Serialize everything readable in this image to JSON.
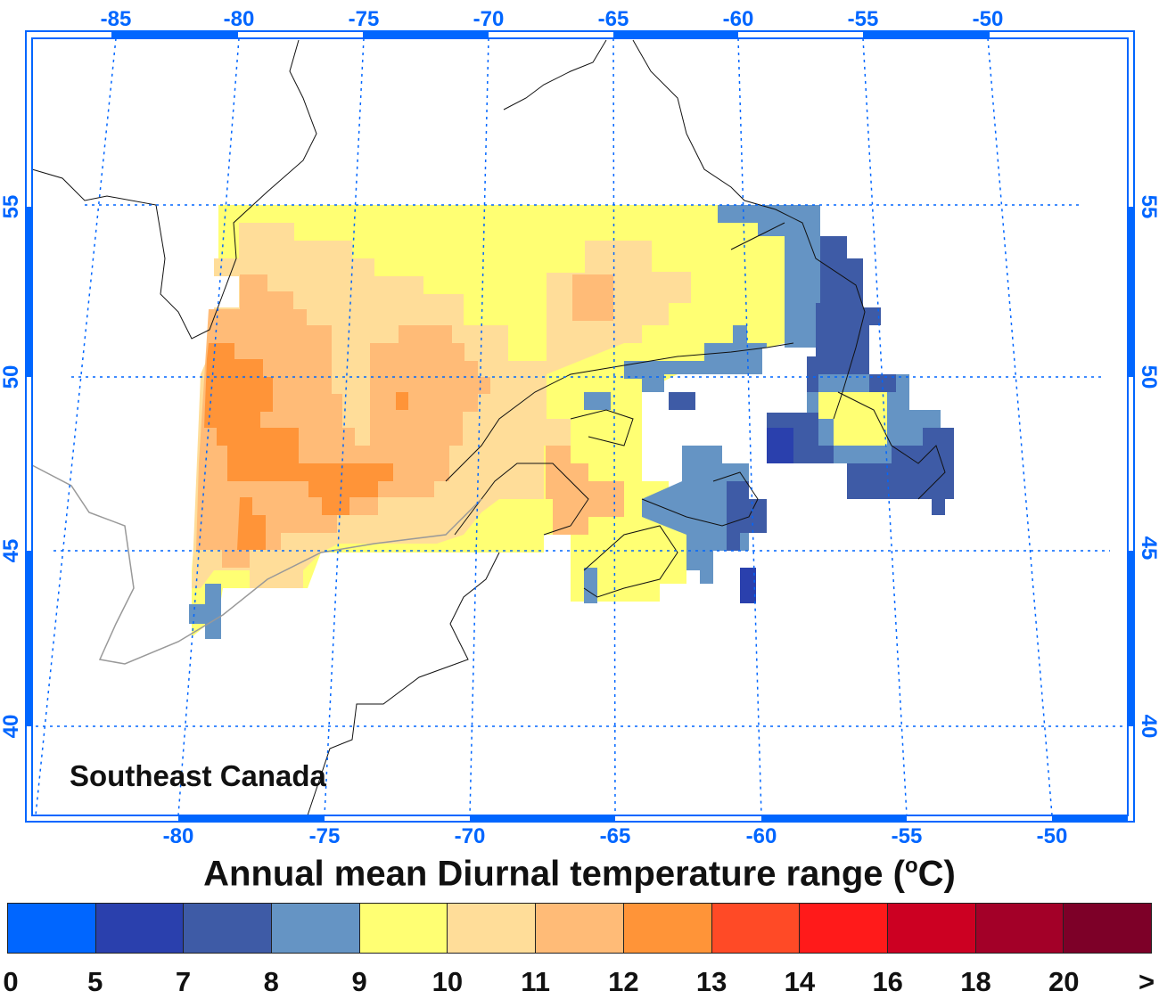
{
  "title": {
    "text": "Annual mean Diurnal temperature range (",
    "sup": "o",
    "unit": "C)"
  },
  "region_label": "Southeast Canada",
  "axes": {
    "top_lon": [
      "-85",
      "-80",
      "-75",
      "-70",
      "-65",
      "-60",
      "-55",
      "-50"
    ],
    "bottom_lon": [
      "-80",
      "-75",
      "-70",
      "-65",
      "-60",
      "-55",
      "-50"
    ],
    "left_lat": [
      "55",
      "50",
      "45",
      "40"
    ],
    "right_lat": [
      "55",
      "50",
      "45",
      "40"
    ],
    "grid_color": "#0066ff"
  },
  "colorbar": {
    "colors": [
      "#0066ff",
      "#2a40ad",
      "#3e5ba6",
      "#6594c4",
      "#ffff73",
      "#ffdd99",
      "#ffbb77",
      "#ff9438",
      "#ff4a26",
      "#ff1a1a",
      "#cc0022",
      "#a30028",
      "#7d0028"
    ],
    "ticks": [
      "0",
      "5",
      "7",
      "8",
      "9",
      "10",
      "11",
      "12",
      "13",
      "14",
      "16",
      "18",
      "20",
      ">"
    ]
  }
}
